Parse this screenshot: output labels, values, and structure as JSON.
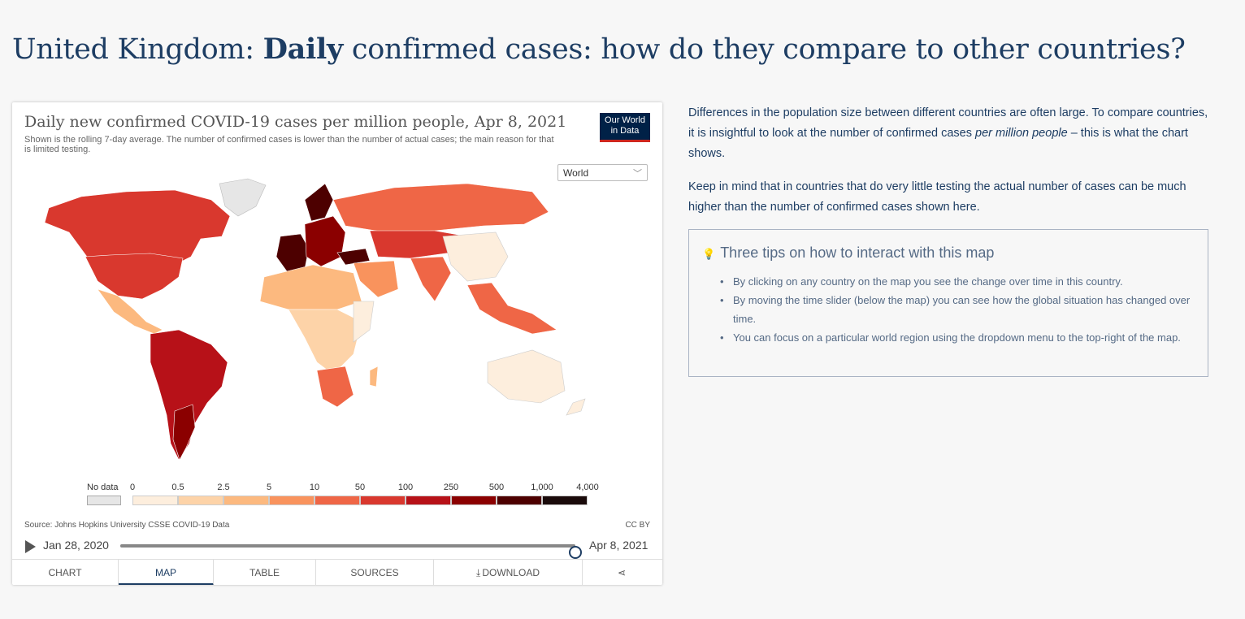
{
  "page": {
    "title_prefix": "United Kingdom: ",
    "title_bold": "Daily",
    "title_suffix": " confirmed cases: how do they compare to other countries?"
  },
  "chart": {
    "title": "Daily new confirmed COVID-19 cases per million people, Apr 8, 2021",
    "subtitle": "Shown is the rolling 7-day average. The number of confirmed cases is lower than the number of actual cases; the main reason for that is limited testing.",
    "logo_line1": "Our World",
    "logo_line2": "in Data",
    "region_selected": "World",
    "source": "Source: Johns Hopkins University CSSE COVID-19 Data",
    "license": "CC BY",
    "timeline": {
      "start_label": "Jan 28, 2020",
      "end_label": "Apr 8, 2021",
      "position": 1.0
    },
    "tabs": [
      {
        "label": "CHART"
      },
      {
        "label": "MAP"
      },
      {
        "label": "TABLE"
      },
      {
        "label": "SOURCES"
      },
      {
        "label": "DOWNLOAD"
      }
    ],
    "active_tab": "MAP",
    "legend": {
      "nodata_label": "No data",
      "bins": [
        "0",
        "0.5",
        "2.5",
        "5",
        "10",
        "50",
        "100",
        "250",
        "500",
        "1,000",
        "4,000"
      ],
      "colors": [
        "#fdeedd",
        "#fdd3a8",
        "#fcb97f",
        "#f9935d",
        "#ef6646",
        "#d9382e",
        "#b71118",
        "#8b0000",
        "#4d0000",
        "#1a0a0a"
      ],
      "nodata_color": "#e6e6e6"
    }
  },
  "chart_data": {
    "type": "choropleth-map",
    "title": "Daily new confirmed COVID-19 cases per million people, Apr 8, 2021",
    "legend_bins": [
      "0",
      "0.5",
      "2.5",
      "5",
      "10",
      "50",
      "100",
      "250",
      "500",
      "1,000",
      "4,000"
    ],
    "region": "World",
    "date": "Apr 8, 2021"
  },
  "sidebar": {
    "p1_a": "Differences in the population size between different countries are often large. To compare countries, it is insightful to look at the number of confirmed cases ",
    "p1_em": "per million people",
    "p1_b": " – this is what the chart shows.",
    "p2": "Keep in mind that in countries that do very little testing the actual number of cases can be much higher than the number of confirmed cases shown here.",
    "tips_title": "Three tips on how to interact with this map",
    "tips": [
      "By clicking on any country on the map you see the change over time in this country.",
      "By moving the time slider (below the map) you can see how the global situation has changed over time.",
      "You can focus on a particular world region using the dropdown menu to the top-right of the map."
    ]
  }
}
